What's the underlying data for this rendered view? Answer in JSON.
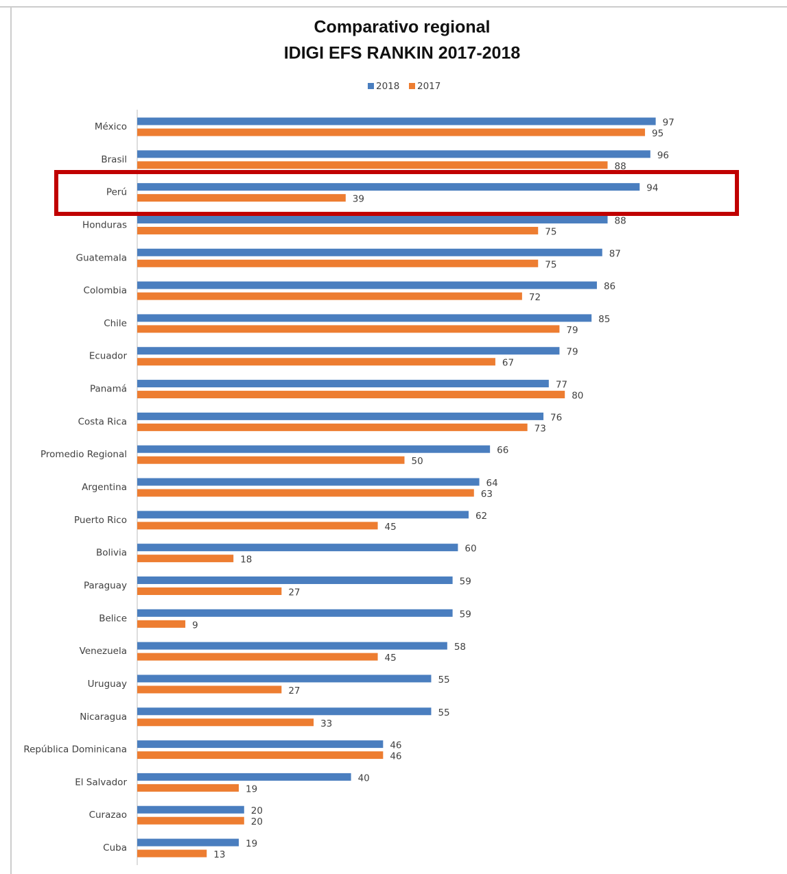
{
  "chart_data": {
    "type": "bar",
    "orientation": "horizontal",
    "title": "Comparativo regional",
    "subtitle": "IDIGI EFS RANKIN 2017-2018",
    "categories": [
      "México",
      "Brasil",
      "Perú",
      "Honduras",
      "Guatemala",
      "Colombia",
      "Chile",
      "Ecuador",
      "Panamá",
      "Costa Rica",
      "Promedio Regional",
      "Argentina",
      "Puerto Rico",
      "Bolivia",
      "Paraguay",
      "Belice",
      "Venezuela",
      "Uruguay",
      "Nicaragua",
      "República Dominicana",
      "El Salvador",
      "Curazao",
      "Cuba"
    ],
    "series": [
      {
        "name": "2018",
        "color": "#4a7ebf",
        "values": [
          97,
          96,
          94,
          88,
          87,
          86,
          85,
          79,
          77,
          76,
          66,
          64,
          62,
          60,
          59,
          59,
          58,
          55,
          55,
          46,
          40,
          20,
          19
        ]
      },
      {
        "name": "2017",
        "color": "#ed7d31",
        "values": [
          95,
          88,
          39,
          75,
          75,
          72,
          79,
          67,
          80,
          73,
          50,
          63,
          45,
          18,
          27,
          9,
          45,
          27,
          33,
          46,
          19,
          20,
          13
        ]
      }
    ],
    "legend": "top"
  }
}
